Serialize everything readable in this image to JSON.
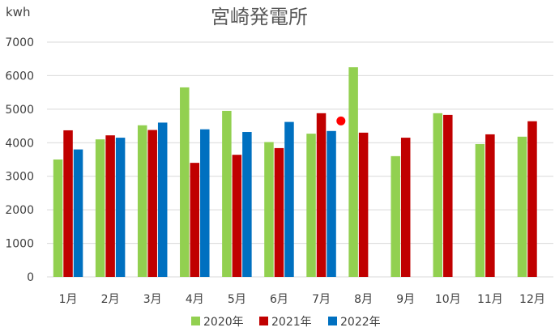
{
  "chart_data": {
    "type": "bar",
    "title": "宮崎発電所",
    "ylabel": "kwh",
    "xlabel": "",
    "ylim": [
      0,
      7000
    ],
    "yticks": [
      0,
      1000,
      2000,
      3000,
      4000,
      5000,
      6000,
      7000
    ],
    "categories": [
      "1月",
      "2月",
      "3月",
      "4月",
      "5月",
      "6月",
      "7月",
      "8月",
      "9月",
      "10月",
      "11月",
      "12月"
    ],
    "series": [
      {
        "name": "2020年",
        "color": "#92d050",
        "values": [
          3500,
          4100,
          4520,
          5650,
          4950,
          4020,
          4270,
          6250,
          3600,
          4880,
          3960,
          4180
        ]
      },
      {
        "name": "2021年",
        "color": "#c00000",
        "values": [
          4370,
          4220,
          4380,
          3400,
          3640,
          3840,
          4880,
          4300,
          4150,
          4830,
          4250,
          4640
        ]
      },
      {
        "name": "2022年",
        "color": "#0070c0",
        "values": [
          3800,
          4150,
          4600,
          4400,
          4320,
          4620,
          4350,
          null,
          null,
          null,
          null,
          null
        ]
      }
    ],
    "marker": {
      "category": "7月",
      "value": 4650,
      "color": "#ff0000"
    },
    "grid": true,
    "legend_position": "bottom"
  }
}
